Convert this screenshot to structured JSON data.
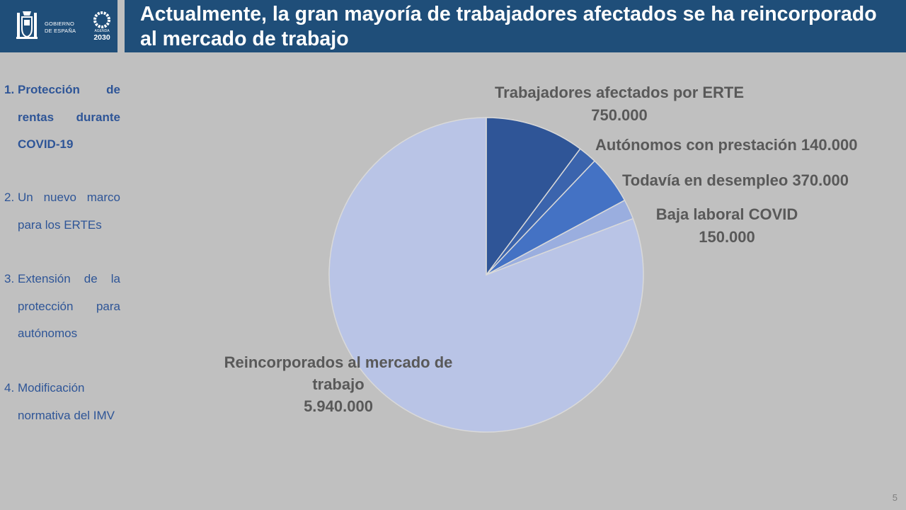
{
  "header": {
    "government_line1": "GOBIERNO",
    "government_line2": "DE ESPAÑA",
    "agenda_label": "AGENDA",
    "agenda_year": "2030",
    "title": "Actualmente, la gran mayoría de trabajadores afectados se ha reincorporado al mercado de trabajo",
    "brand_color": "#1f4e79"
  },
  "sidebar": {
    "items": [
      {
        "number": "1.",
        "label": "Protección de rentas durante COVID-19",
        "active": true
      },
      {
        "number": "2.",
        "label": "Un nuevo marco para los ERTEs",
        "active": false
      },
      {
        "number": "3.",
        "label": "Extensión de la protección para autónomos",
        "active": false
      },
      {
        "number": "4.",
        "label": "Modificación normativa del IMV",
        "active": false
      }
    ]
  },
  "chart_data": {
    "type": "pie",
    "start_angle": "12 o'clock",
    "direction": "clockwise",
    "slices": [
      {
        "label": "Trabajadores afectados por ERTE",
        "display": "750.000",
        "value": 750000,
        "color": "#2f5597"
      },
      {
        "label": "Autónomos con prestación",
        "display": "140.000",
        "value": 140000,
        "color": "#3b64ad"
      },
      {
        "label": "Todavía en desempleo",
        "display": "370.000",
        "value": 370000,
        "color": "#4472c4"
      },
      {
        "label": "Baja laboral COVID",
        "display": "150.000",
        "value": 150000,
        "color": "#9aaedf"
      },
      {
        "label": "Reincorporados al mercado de trabajo",
        "display": "5.940.000",
        "value": 5940000,
        "color": "#b9c4e6"
      }
    ],
    "slice_border_color": "#d9d9d9",
    "label_color": "#595959"
  },
  "footer": {
    "page_number": "5"
  }
}
